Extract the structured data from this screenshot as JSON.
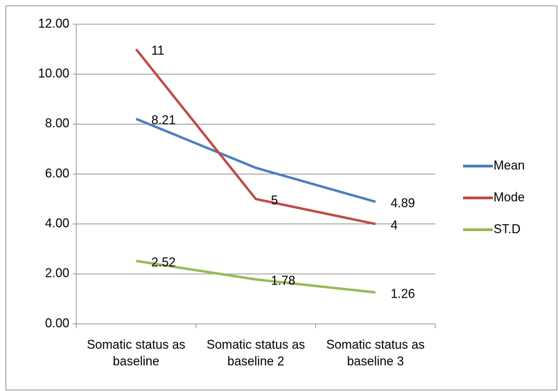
{
  "chart_data": {
    "type": "line",
    "categories": [
      "Somatic status as baseline",
      "Somatic status as baseline 2",
      "Somatic status as baseline 3"
    ],
    "series": [
      {
        "name": "Mean",
        "color": "#4a7ebb",
        "values": [
          8.21,
          6.25,
          4.89
        ],
        "value_labels": [
          "8.21",
          null,
          "4.89"
        ]
      },
      {
        "name": "Mode",
        "color": "#be4b48",
        "values": [
          11,
          5,
          4
        ]
      },
      {
        "name": "ST.D",
        "color": "#98b954",
        "values": [
          2.52,
          1.78,
          1.26
        ]
      }
    ],
    "ylim": [
      0,
      12
    ],
    "yticks": [
      {
        "value": 0,
        "label": "0.00"
      },
      {
        "value": 2,
        "label": "2.00"
      },
      {
        "value": 4,
        "label": "4.00"
      },
      {
        "value": 6,
        "label": "6.00"
      },
      {
        "value": 8,
        "label": "8.00"
      },
      {
        "value": 10,
        "label": "10.00"
      },
      {
        "value": 12,
        "label": "12.00"
      }
    ],
    "grid": true,
    "legend": "right"
  }
}
